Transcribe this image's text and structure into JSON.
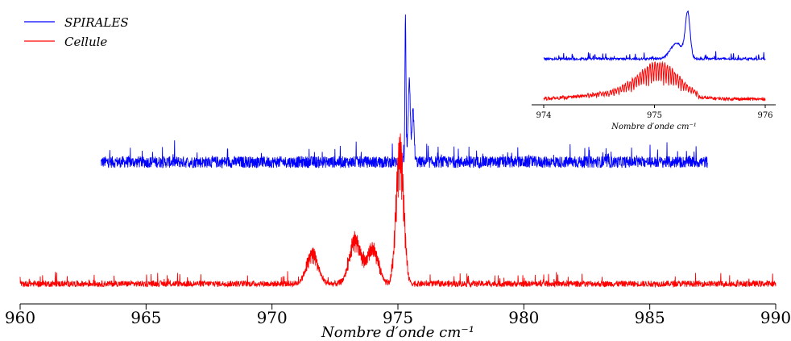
{
  "chart_data": [
    {
      "type": "line",
      "title": "",
      "xlabel": "Nombre d′onde cm⁻¹",
      "ylabel": "",
      "xlim": [
        960,
        990
      ],
      "xticks": [
        "960",
        "965",
        "970",
        "975",
        "980",
        "985",
        "990"
      ],
      "y_axis_visible": false,
      "grid": false,
      "legend": {
        "position": "top-left",
        "entries": [
          "SPIRALES",
          "Cellule"
        ]
      },
      "series": [
        {
          "name": "SPIRALES",
          "color": "#0000ff",
          "x_range": [
            963.2,
            987.3
          ],
          "peaks": [
            {
              "x": 975.3,
              "y": 1.0
            },
            {
              "x": 975.45,
              "y": 0.55
            },
            {
              "x": 975.6,
              "y": 0.35
            }
          ],
          "baseline": 0.0,
          "noise_amplitude": 0.08
        },
        {
          "name": "Cellule",
          "color": "#ff0000",
          "x_range": [
            960.0,
            990.0
          ],
          "peaks": [
            {
              "x": 971.6,
              "y": 0.35
            },
            {
              "x": 973.3,
              "y": 0.5
            },
            {
              "x": 974.0,
              "y": 0.4
            },
            {
              "x": 975.0,
              "y": 0.85
            },
            {
              "x": 975.15,
              "y": 0.95
            }
          ],
          "baseline": 0.0,
          "noise_amplitude": 0.06
        }
      ]
    },
    {
      "type": "line",
      "title": "",
      "xlabel": "Nombre d′onde cm⁻¹",
      "xlim": [
        974,
        976
      ],
      "xticks": [
        "974",
        "975",
        "976"
      ],
      "y_axis_visible": false,
      "grid": false,
      "series": [
        {
          "name": "SPIRALES",
          "color": "#0000ff",
          "peak_x": 975.3
        },
        {
          "name": "Cellule",
          "color": "#ff0000",
          "band": [
            974.6,
            975.4
          ]
        }
      ]
    }
  ]
}
